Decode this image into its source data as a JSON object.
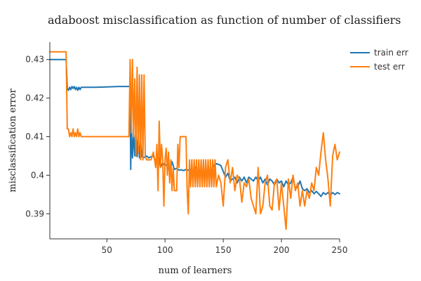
{
  "chart_data": {
    "type": "line",
    "title": "adaboost misclassification as function of number of classifiers",
    "xlabel": "num of learners",
    "ylabel": "misclassification error",
    "xlim": [
      1,
      250
    ],
    "ylim": [
      0.3835,
      0.4345
    ],
    "xticks": [
      50,
      100,
      150,
      200,
      250
    ],
    "yticks": [
      0.39,
      0.4,
      0.41,
      0.42,
      0.43
    ],
    "ytick_labels": [
      "0.39",
      "0.4",
      "0.41",
      "0.42",
      "0.43"
    ],
    "grid": false,
    "legend_position": "top-right",
    "series": [
      {
        "name": "train err",
        "color": "#1f77b4",
        "points": [
          [
            1,
            0.43
          ],
          [
            15,
            0.43
          ],
          [
            16,
            0.4225
          ],
          [
            17,
            0.422
          ],
          [
            18,
            0.4228
          ],
          [
            19,
            0.4222
          ],
          [
            20,
            0.423
          ],
          [
            21,
            0.4225
          ],
          [
            22,
            0.423
          ],
          [
            23,
            0.4222
          ],
          [
            24,
            0.4228
          ],
          [
            25,
            0.422
          ],
          [
            26,
            0.4228
          ],
          [
            27,
            0.4222
          ],
          [
            28,
            0.4228
          ],
          [
            30,
            0.4228
          ],
          [
            40,
            0.4228
          ],
          [
            50,
            0.4229
          ],
          [
            60,
            0.423
          ],
          [
            70,
            0.423
          ],
          [
            70.5,
            0.4015
          ],
          [
            71,
            0.413
          ],
          [
            72,
            0.4045
          ],
          [
            73,
            0.411
          ],
          [
            74,
            0.405
          ],
          [
            75,
            0.412
          ],
          [
            76,
            0.4048
          ],
          [
            77,
            0.41
          ],
          [
            78,
            0.4045
          ],
          [
            79,
            0.409
          ],
          [
            80,
            0.4048
          ],
          [
            82,
            0.4046
          ],
          [
            84,
            0.405
          ],
          [
            86,
            0.4045
          ],
          [
            88,
            0.4048
          ],
          [
            90,
            0.405
          ],
          [
            92,
            0.4035
          ],
          [
            94,
            0.404
          ],
          [
            95,
            0.4045
          ],
          [
            96,
            0.402
          ],
          [
            98,
            0.4032
          ],
          [
            100,
            0.4025
          ],
          [
            102,
            0.4028
          ],
          [
            104,
            0.401
          ],
          [
            106,
            0.4035
          ],
          [
            108,
            0.4015
          ],
          [
            110,
            0.4018
          ],
          [
            112,
            0.4013
          ],
          [
            114,
            0.4014
          ],
          [
            116,
            0.4012
          ],
          [
            118,
            0.4015
          ],
          [
            120,
            0.4013
          ],
          [
            122,
            0.4015
          ],
          [
            124,
            0.401
          ],
          [
            126,
            0.402
          ],
          [
            128,
            0.4008
          ],
          [
            130,
            0.401
          ],
          [
            132,
            0.401
          ],
          [
            134,
            0.4005
          ],
          [
            136,
            0.4008
          ],
          [
            138,
            0.4003
          ],
          [
            140,
            0.4012
          ],
          [
            142,
            0.4025
          ],
          [
            144,
            0.403
          ],
          [
            146,
            0.4028
          ],
          [
            148,
            0.4025
          ],
          [
            150,
            0.401
          ],
          [
            152,
            0.3995
          ],
          [
            154,
            0.4005
          ],
          [
            156,
            0.3985
          ],
          [
            158,
            0.399
          ],
          [
            160,
            0.3995
          ],
          [
            162,
            0.398
          ],
          [
            164,
            0.3995
          ],
          [
            166,
            0.3985
          ],
          [
            168,
            0.3995
          ],
          [
            170,
            0.398
          ],
          [
            172,
            0.3995
          ],
          [
            174,
            0.399
          ],
          [
            176,
            0.3985
          ],
          [
            178,
            0.3995
          ],
          [
            180,
            0.3985
          ],
          [
            182,
            0.3995
          ],
          [
            184,
            0.398
          ],
          [
            186,
            0.399
          ],
          [
            188,
            0.3975
          ],
          [
            190,
            0.399
          ],
          [
            192,
            0.3985
          ],
          [
            194,
            0.3975
          ],
          [
            196,
            0.399
          ],
          [
            198,
            0.398
          ],
          [
            200,
            0.3985
          ],
          [
            202,
            0.397
          ],
          [
            204,
            0.3985
          ],
          [
            206,
            0.3975
          ],
          [
            208,
            0.398
          ],
          [
            210,
            0.3995
          ],
          [
            212,
            0.3965
          ],
          [
            214,
            0.397
          ],
          [
            216,
            0.3985
          ],
          [
            218,
            0.3965
          ],
          [
            220,
            0.396
          ],
          [
            222,
            0.3965
          ],
          [
            224,
            0.3955
          ],
          [
            226,
            0.396
          ],
          [
            228,
            0.3952
          ],
          [
            230,
            0.3958
          ],
          [
            232,
            0.3952
          ],
          [
            234,
            0.3945
          ],
          [
            236,
            0.3955
          ],
          [
            238,
            0.395
          ],
          [
            240,
            0.3955
          ],
          [
            242,
            0.3948
          ],
          [
            244,
            0.3955
          ],
          [
            246,
            0.395
          ],
          [
            248,
            0.3955
          ],
          [
            250,
            0.3952
          ]
        ]
      },
      {
        "name": "test err",
        "color": "#ff7f0e",
        "points": [
          [
            1,
            0.432
          ],
          [
            15,
            0.432
          ],
          [
            16,
            0.412
          ],
          [
            17,
            0.412
          ],
          [
            18,
            0.41
          ],
          [
            19,
            0.411
          ],
          [
            20,
            0.41
          ],
          [
            21,
            0.412
          ],
          [
            22,
            0.41
          ],
          [
            23,
            0.411
          ],
          [
            24,
            0.41
          ],
          [
            25,
            0.412
          ],
          [
            26,
            0.41
          ],
          [
            27,
            0.411
          ],
          [
            28,
            0.41
          ],
          [
            30,
            0.41
          ],
          [
            40,
            0.41
          ],
          [
            50,
            0.41
          ],
          [
            60,
            0.41
          ],
          [
            69,
            0.41
          ],
          [
            70,
            0.43
          ],
          [
            71,
            0.411
          ],
          [
            72,
            0.43
          ],
          [
            73,
            0.41
          ],
          [
            74,
            0.425
          ],
          [
            75,
            0.405
          ],
          [
            76,
            0.428
          ],
          [
            77,
            0.406
          ],
          [
            78,
            0.426
          ],
          [
            79,
            0.404
          ],
          [
            80,
            0.426
          ],
          [
            81,
            0.404
          ],
          [
            82,
            0.426
          ],
          [
            83,
            0.405
          ],
          [
            84,
            0.404
          ],
          [
            86,
            0.404
          ],
          [
            88,
            0.404
          ],
          [
            90,
            0.406
          ],
          [
            91,
            0.404
          ],
          [
            92,
            0.402
          ],
          [
            93,
            0.408
          ],
          [
            94,
            0.396
          ],
          [
            95,
            0.414
          ],
          [
            96,
            0.402
          ],
          [
            97,
            0.408
          ],
          [
            98,
            0.404
          ],
          [
            99,
            0.392
          ],
          [
            100,
            0.404
          ],
          [
            101,
            0.407
          ],
          [
            102,
            0.4
          ],
          [
            103,
            0.406
          ],
          [
            104,
            0.398
          ],
          [
            105,
            0.404
          ],
          [
            106,
            0.396
          ],
          [
            107,
            0.402
          ],
          [
            108,
            0.396
          ],
          [
            110,
            0.396
          ],
          [
            111,
            0.408
          ],
          [
            112,
            0.402
          ],
          [
            113,
            0.41
          ],
          [
            116,
            0.41
          ],
          [
            118,
            0.41
          ],
          [
            119,
            0.396
          ],
          [
            120,
            0.39
          ],
          [
            121,
            0.404
          ],
          [
            122,
            0.397
          ],
          [
            123,
            0.404
          ],
          [
            124,
            0.397
          ],
          [
            125,
            0.404
          ],
          [
            126,
            0.397
          ],
          [
            127,
            0.404
          ],
          [
            128,
            0.397
          ],
          [
            129,
            0.404
          ],
          [
            130,
            0.397
          ],
          [
            131,
            0.404
          ],
          [
            132,
            0.397
          ],
          [
            133,
            0.404
          ],
          [
            134,
            0.397
          ],
          [
            135,
            0.404
          ],
          [
            136,
            0.397
          ],
          [
            137,
            0.404
          ],
          [
            138,
            0.397
          ],
          [
            139,
            0.404
          ],
          [
            140,
            0.397
          ],
          [
            141,
            0.404
          ],
          [
            142,
            0.397
          ],
          [
            143,
            0.404
          ],
          [
            144,
            0.397
          ],
          [
            146,
            0.4
          ],
          [
            148,
            0.398
          ],
          [
            150,
            0.392
          ],
          [
            152,
            0.402
          ],
          [
            154,
            0.404
          ],
          [
            156,
            0.398
          ],
          [
            158,
            0.402
          ],
          [
            160,
            0.396
          ],
          [
            162,
            0.4
          ],
          [
            164,
            0.399
          ],
          [
            166,
            0.393
          ],
          [
            168,
            0.398
          ],
          [
            170,
            0.397
          ],
          [
            172,
            0.399
          ],
          [
            174,
            0.394
          ],
          [
            176,
            0.392
          ],
          [
            178,
            0.39
          ],
          [
            180,
            0.402
          ],
          [
            182,
            0.39
          ],
          [
            184,
            0.392
          ],
          [
            186,
            0.398
          ],
          [
            188,
            0.4
          ],
          [
            190,
            0.392
          ],
          [
            192,
            0.391
          ],
          [
            194,
            0.398
          ],
          [
            196,
            0.399
          ],
          [
            198,
            0.391
          ],
          [
            200,
            0.398
          ],
          [
            202,
            0.392
          ],
          [
            204,
            0.386
          ],
          [
            206,
            0.399
          ],
          [
            208,
            0.394
          ],
          [
            210,
            0.4
          ],
          [
            212,
            0.396
          ],
          [
            214,
            0.398
          ],
          [
            216,
            0.392
          ],
          [
            218,
            0.396
          ],
          [
            220,
            0.392
          ],
          [
            222,
            0.396
          ],
          [
            224,
            0.394
          ],
          [
            226,
            0.398
          ],
          [
            228,
            0.396
          ],
          [
            230,
            0.402
          ],
          [
            232,
            0.4
          ],
          [
            234,
            0.406
          ],
          [
            236,
            0.411
          ],
          [
            238,
            0.404
          ],
          [
            240,
            0.399
          ],
          [
            242,
            0.392
          ],
          [
            244,
            0.405
          ],
          [
            246,
            0.408
          ],
          [
            248,
            0.404
          ],
          [
            250,
            0.406
          ]
        ]
      }
    ]
  }
}
